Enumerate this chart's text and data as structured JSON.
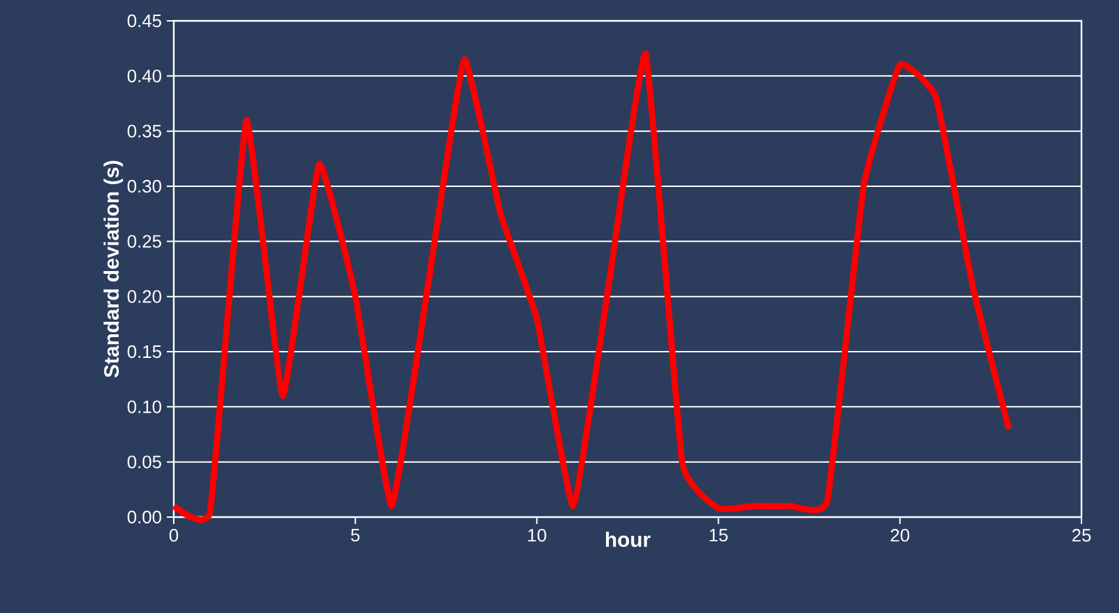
{
  "chart_data": {
    "type": "line",
    "xlabel": "hour",
    "ylabel": "Standard deviation (s)",
    "x": [
      0,
      1,
      2,
      3,
      4,
      5,
      6,
      7,
      8,
      9,
      10,
      11,
      12,
      13,
      14,
      15,
      16,
      17,
      18,
      19,
      20,
      21,
      22,
      23
    ],
    "series": [
      {
        "color": "#ff0000",
        "values": [
          0.01,
          0.005,
          0.36,
          0.11,
          0.32,
          0.2,
          0.01,
          0.21,
          0.415,
          0.275,
          0.18,
          0.01,
          0.215,
          0.42,
          0.05,
          0.008,
          0.01,
          0.01,
          0.015,
          0.3,
          0.41,
          0.38,
          0.21,
          0.08
        ]
      }
    ],
    "xlim": [
      0,
      25
    ],
    "xticks": [
      0,
      5,
      10,
      15,
      20,
      25
    ],
    "ylim": [
      0,
      0.45
    ],
    "yticks": [
      {
        "value": 0,
        "label": "0.00"
      },
      {
        "value": 0.05,
        "label": "0.05"
      },
      {
        "value": 0.1,
        "label": "0.10"
      },
      {
        "value": 0.15,
        "label": "0.15"
      },
      {
        "value": 0.2,
        "label": "0.20"
      },
      {
        "value": 0.25,
        "label": "0.25"
      },
      {
        "value": 0.3,
        "label": "0.30"
      },
      {
        "value": 0.35,
        "label": "0.35"
      },
      {
        "value": 0.4,
        "label": "0.40"
      },
      {
        "value": 0.45,
        "label": "0.45"
      }
    ],
    "grid": "y",
    "marker": "none",
    "line_style": "solid"
  }
}
